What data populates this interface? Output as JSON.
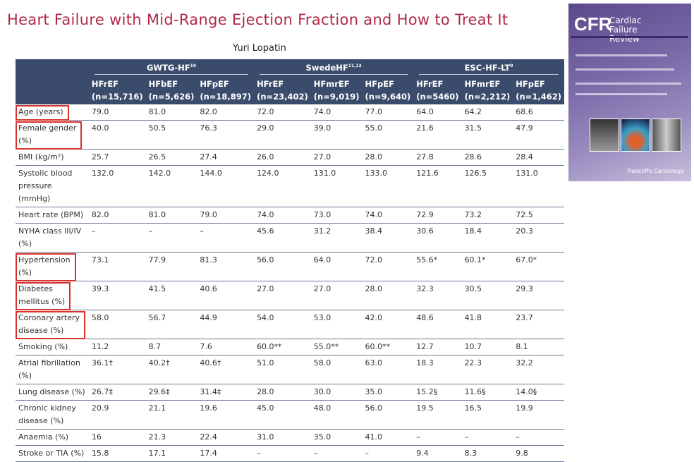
{
  "title": "Heart Failure with Mid-Range Ejection Fraction and How to Treat It",
  "author": "Yuri Lopatin",
  "groups": [
    {
      "name": "GWTG-HF",
      "ref": "10"
    },
    {
      "name": "SwedeHF",
      "ref": "11,12"
    },
    {
      "name": "ESC-HF-LT",
      "ref": "9"
    }
  ],
  "columns": [
    {
      "name": "HFrEF",
      "n": "(n=15,716)"
    },
    {
      "name": "HFbEF",
      "n": "(n=5,626)"
    },
    {
      "name": "HFpEF",
      "n": "(n=18,897)"
    },
    {
      "name": "HFrEF",
      "n": "(n=23,402)"
    },
    {
      "name": "HFmrEF",
      "n": "(n=9,019)"
    },
    {
      "name": "HFpEF",
      "n": "(n=9,640)"
    },
    {
      "name": "HFrEF",
      "n": "(n=5460)"
    },
    {
      "name": "HFmrEF",
      "n": "(n=2,212)"
    },
    {
      "name": "HFpEF",
      "n": "(n=1,462)"
    }
  ],
  "rows": [
    {
      "label": "Age (years)",
      "highlighted": true,
      "values": [
        "79.0",
        "81.0",
        "82.0",
        "72.0",
        "74.0",
        "77.0",
        "64.0",
        "64.2",
        "68.6"
      ]
    },
    {
      "label": "Female gender (%)",
      "highlighted": true,
      "values": [
        "40.0",
        "50.5",
        "76.3",
        "29.0",
        "39.0",
        "55.0",
        "21.6",
        "31.5",
        "47.9"
      ]
    },
    {
      "label": "BMI (kg/m²)",
      "highlighted": false,
      "values": [
        "25.7",
        "26.5",
        "27.4",
        "26.0",
        "27.0",
        "28.0",
        "27.8",
        "28.6",
        "28.4"
      ]
    },
    {
      "label": "Systolic blood pressure (mmHg)",
      "highlighted": false,
      "values": [
        "132.0",
        "142.0",
        "144.0",
        "124.0",
        "131.0",
        "133.0",
        "121.6",
        "126.5",
        "131.0"
      ]
    },
    {
      "label": "Heart rate (BPM)",
      "highlighted": false,
      "values": [
        "82.0",
        "81.0",
        "79.0",
        "74.0",
        "73.0",
        "74.0",
        "72.9",
        "73.2",
        "72.5"
      ]
    },
    {
      "label": "NYHA class III/IV (%)",
      "highlighted": false,
      "values": [
        "–",
        "–",
        "–",
        "45.6",
        "31.2",
        "38.4",
        "30.6",
        "18.4",
        "20.3"
      ]
    },
    {
      "label": "Hypertension (%)",
      "highlighted": true,
      "values": [
        "73.1",
        "77.9",
        "81.3",
        "56.0",
        "64.0",
        "72.0",
        "55.6*",
        "60.1*",
        "67.0*"
      ]
    },
    {
      "label": "Diabetes mellitus (%)",
      "highlighted": true,
      "values": [
        "39.3",
        "41.5",
        "40.6",
        "27.0",
        "27.0",
        "28.0",
        "32.3",
        "30.5",
        "29.3"
      ]
    },
    {
      "label": "Coronary artery disease (%)",
      "highlighted": true,
      "values": [
        "58.0",
        "56.7",
        "44.9",
        "54.0",
        "53.0",
        "42.0",
        "48.6",
        "41.8",
        "23.7"
      ]
    },
    {
      "label": "Smoking (%)",
      "highlighted": false,
      "values": [
        "11.2",
        "8.7",
        "7.6",
        "60.0**",
        "55.0**",
        "60.0**",
        "12.7",
        "10.7",
        "8.1"
      ]
    },
    {
      "label": "Atrial fibrillation (%)",
      "highlighted": false,
      "values": [
        "36.1†",
        "40.2†",
        "40.6†",
        "51.0",
        "58.0",
        "63.0",
        "18.3",
        "22.3",
        "32.2"
      ]
    },
    {
      "label": "Lung disease (%)",
      "highlighted": false,
      "values": [
        "26.7‡",
        "29.6‡",
        "31.4‡",
        "28.0",
        "30.0",
        "35.0",
        "15.2§",
        "11.6§",
        "14.0§"
      ]
    },
    {
      "label": "Chronic kidney disease (%)",
      "highlighted": false,
      "values": [
        "20.9",
        "21.1",
        "19.6",
        "45.0",
        "48.0",
        "56.0",
        "19.5",
        "16.5",
        "19.9"
      ]
    },
    {
      "label": "Anaemia (%)",
      "highlighted": false,
      "values": [
        "16",
        "21.3",
        "22.4",
        "31.0",
        "35.0",
        "41.0",
        "–",
        "–",
        "–"
      ]
    },
    {
      "label": "Stroke or TIA (%)",
      "highlighted": false,
      "values": [
        "15.8",
        "17.1",
        "17.4",
        "–",
        "–",
        "–",
        "9.4",
        "8.3",
        "9.8"
      ]
    }
  ],
  "cover": {
    "logo": "CFR",
    "journal": "Cardiac Failure Review",
    "publisher": "Radcliffe Cardiology"
  },
  "colors": {
    "title": "#b02a45",
    "header": "#3b4b6c",
    "highlight_box": "#d6332e"
  }
}
